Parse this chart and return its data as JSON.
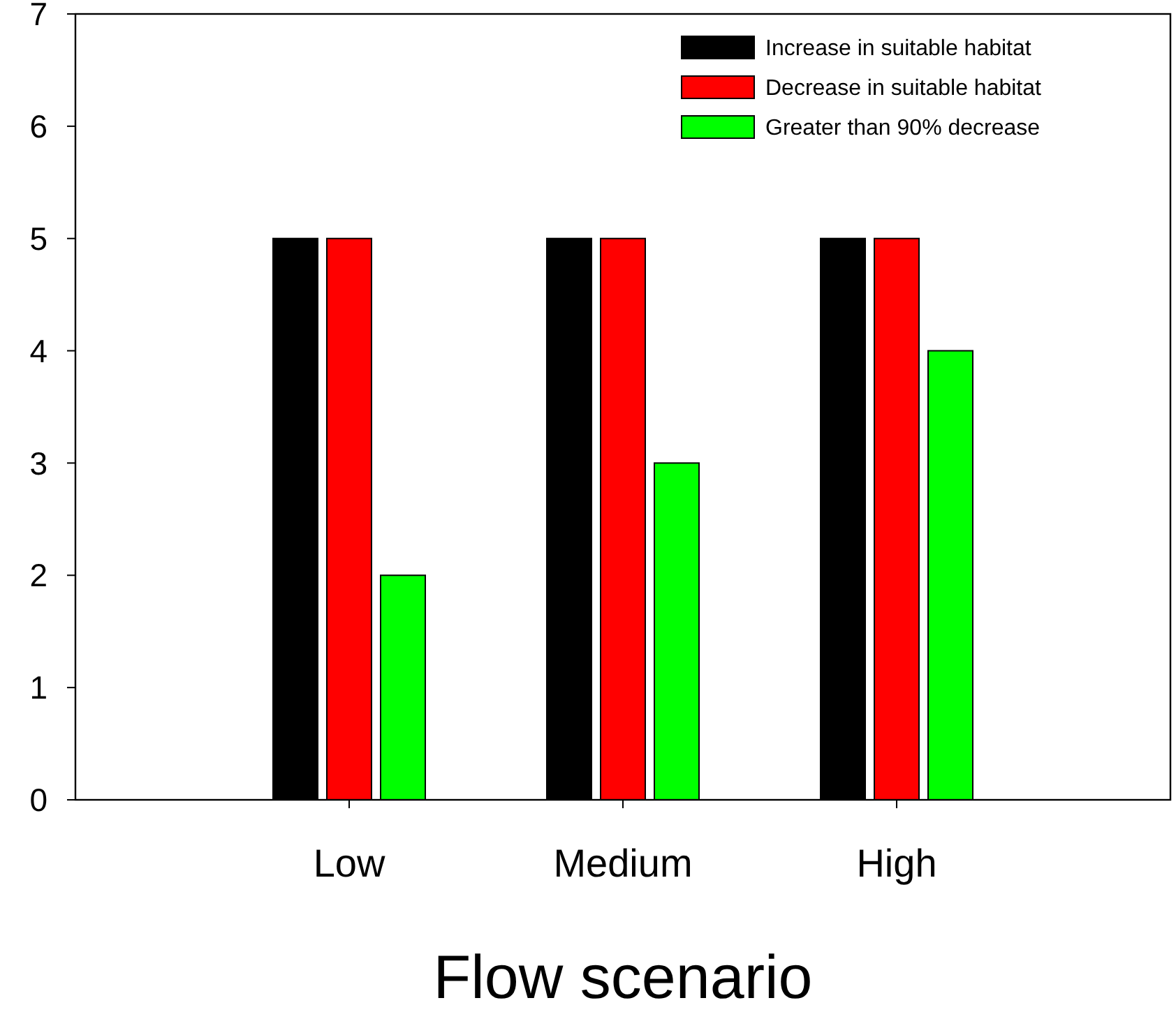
{
  "chart_data": {
    "type": "bar",
    "xlabel": "Flow scenario",
    "categories": [
      "Low",
      "Medium",
      "High"
    ],
    "series": [
      {
        "name": "Increase in suitable habitat",
        "color": "#000000",
        "values": [
          5,
          5,
          5
        ]
      },
      {
        "name": "Decrease in suitable habitat",
        "color": "#ff0000",
        "values": [
          5,
          5,
          5
        ]
      },
      {
        "name": "Greater than 90% decrease",
        "color": "#00ff00",
        "values": [
          2,
          3,
          4
        ]
      }
    ],
    "ylim": [
      0,
      7
    ],
    "yticks": [
      0,
      1,
      2,
      3,
      4,
      5,
      6,
      7
    ],
    "grid": false,
    "legend": "top right"
  }
}
